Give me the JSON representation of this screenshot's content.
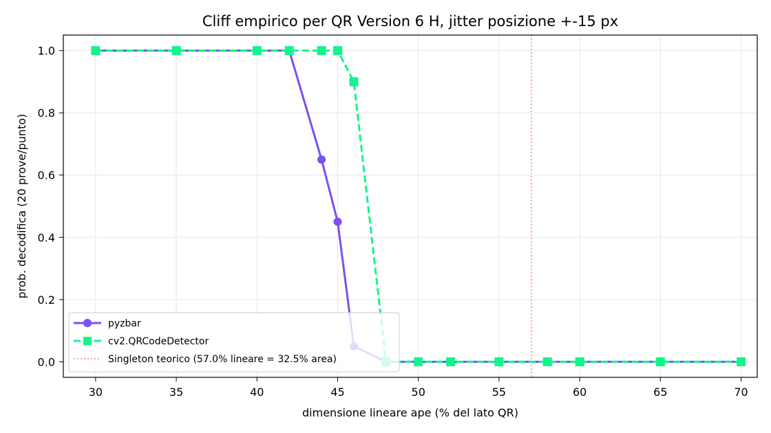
{
  "chart_data": {
    "type": "line",
    "title": "Cliff empirico per QR Version 6 H, jitter posizione +-15 px",
    "xlabel": "dimensione lineare ape (% del lato QR)",
    "ylabel": "prob. decodifica (20 prove/punto)",
    "xlim": [
      28,
      71
    ],
    "ylim": [
      -0.05,
      1.05
    ],
    "xticks": [
      30,
      35,
      40,
      45,
      50,
      55,
      60,
      65,
      70
    ],
    "yticks": [
      0.0,
      0.2,
      0.4,
      0.6,
      0.8,
      1.0
    ],
    "xtick_labels": [
      "30",
      "35",
      "40",
      "45",
      "50",
      "55",
      "60",
      "65",
      "70"
    ],
    "ytick_labels": [
      "0.0",
      "0.2",
      "0.4",
      "0.6",
      "0.8",
      "1.0"
    ],
    "grid": true,
    "legend_position": "lower-left",
    "series": [
      {
        "name": "pyzbar",
        "color": "#7b4ff0",
        "marker": "circle",
        "linestyle": "solid",
        "x": [
          30,
          35,
          40,
          42,
          44,
          45,
          46,
          48,
          50,
          52,
          55,
          58,
          60,
          65,
          70
        ],
        "y": [
          1.0,
          1.0,
          1.0,
          1.0,
          0.65,
          0.45,
          0.05,
          0.0,
          0.0,
          0.0,
          0.0,
          0.0,
          0.0,
          0.0,
          0.0
        ]
      },
      {
        "name": "cv2.QRCodeDetector",
        "color": "#12f58a",
        "marker": "square",
        "linestyle": "dashed",
        "x": [
          30,
          35,
          40,
          42,
          44,
          45,
          46,
          48,
          50,
          52,
          55,
          58,
          60,
          65,
          70
        ],
        "y": [
          1.0,
          1.0,
          1.0,
          1.0,
          1.0,
          1.0,
          0.9,
          0.0,
          0.0,
          0.0,
          0.0,
          0.0,
          0.0,
          0.0,
          0.0
        ]
      }
    ],
    "reference_line": {
      "name": "Singleton teorico (57.0% lineare = 32.5% area)",
      "x": 57.0,
      "color": "#f4a4a4",
      "linestyle": "dotted"
    }
  }
}
